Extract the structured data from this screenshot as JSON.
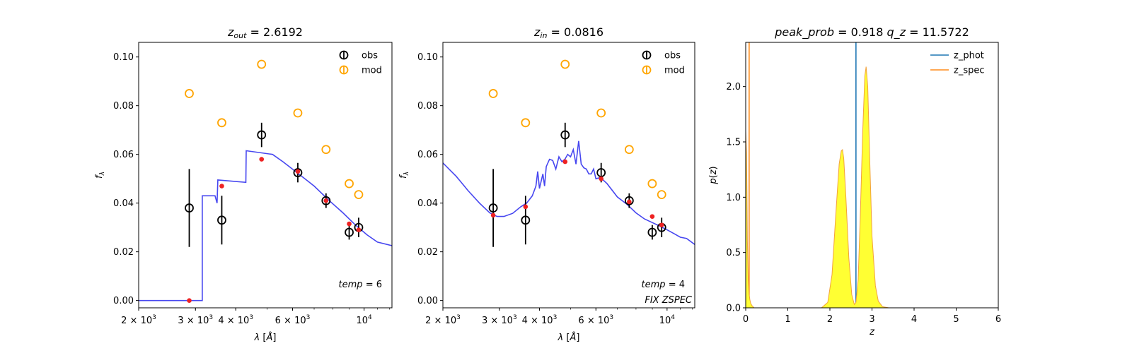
{
  "chart_data": [
    {
      "type": "scatter",
      "title": "z_out = 2.6192",
      "title_parts": {
        "var": "z",
        "sub": "out",
        "value": "= 2.6192"
      },
      "xlabel": "λ [Å]",
      "ylabel": "f_λ",
      "xscale": "log",
      "xlim": [
        2000,
        12200
      ],
      "ylim": [
        -0.003,
        0.106
      ],
      "x_ticks": [
        {
          "value": 2000,
          "base": "2 × 10",
          "exp": "3"
        },
        {
          "value": 3000,
          "base": "3 × 10",
          "exp": "3"
        },
        {
          "value": 4000,
          "base": "4 × 10",
          "exp": "3"
        },
        {
          "value": 6000,
          "base": "6 × 10",
          "exp": "3"
        },
        {
          "value": 10000,
          "base": "10",
          "exp": "4"
        }
      ],
      "y_ticks": [
        "0.00",
        "0.02",
        "0.04",
        "0.06",
        "0.08",
        "0.10"
      ],
      "legend": {
        "position": "top-right",
        "entries": [
          "obs",
          "mod"
        ]
      },
      "annotations": [
        {
          "text": "temp = 6",
          "position": "bottom-right"
        }
      ],
      "series": [
        {
          "name": "obs",
          "color": "#000000",
          "x": [
            2870,
            3620,
            4810,
            6230,
            7620,
            8990,
            9620
          ],
          "y": [
            0.038,
            0.033,
            0.068,
            0.0525,
            0.041,
            0.028,
            0.03
          ],
          "err": [
            0.016,
            0.01,
            0.005,
            0.004,
            0.003,
            0.003,
            0.004
          ]
        },
        {
          "name": "mod",
          "color": "#ffa500",
          "x": [
            2870,
            3620,
            4810,
            6230,
            7620,
            8990,
            9620
          ],
          "y": [
            0.085,
            0.073,
            0.097,
            0.077,
            0.062,
            0.048,
            0.0435
          ]
        },
        {
          "color": "#ee2222",
          "x": [
            2870,
            3620,
            4810,
            6230,
            7620,
            8990,
            9620
          ],
          "y": [
            0.0,
            0.047,
            0.058,
            0.053,
            0.041,
            0.0315,
            0.029
          ]
        },
        {
          "color": "#3333ee",
          "kind": "line",
          "x": [
            2000,
            3150,
            3150,
            3450,
            3500,
            3520,
            4300,
            4310,
            5200,
            5600,
            6200,
            7000,
            7800,
            8600,
            9400,
            10200,
            11000,
            12200
          ],
          "y": [
            0.0,
            0.0,
            0.043,
            0.043,
            0.04,
            0.0495,
            0.0485,
            0.0615,
            0.06,
            0.057,
            0.0525,
            0.047,
            0.041,
            0.036,
            0.031,
            0.027,
            0.024,
            0.0225
          ]
        }
      ]
    },
    {
      "type": "scatter",
      "title": "z_in = 0.0816",
      "title_parts": {
        "var": "z",
        "sub": "in",
        "value": "= 0.0816"
      },
      "xlabel": "λ [Å]",
      "ylabel": "f_λ",
      "xscale": "log",
      "xlim": [
        2000,
        12200
      ],
      "ylim": [
        -0.003,
        0.106
      ],
      "x_ticks": [
        {
          "value": 2000,
          "base": "2 × 10",
          "exp": "3"
        },
        {
          "value": 3000,
          "base": "3 × 10",
          "exp": "3"
        },
        {
          "value": 4000,
          "base": "4 × 10",
          "exp": "3"
        },
        {
          "value": 6000,
          "base": "6 × 10",
          "exp": "3"
        },
        {
          "value": 10000,
          "base": "10",
          "exp": "4"
        }
      ],
      "y_ticks": [
        "0.00",
        "0.02",
        "0.04",
        "0.06",
        "0.08",
        "0.10"
      ],
      "legend": {
        "position": "top-right",
        "entries": [
          "obs",
          "mod"
        ]
      },
      "annotations": [
        {
          "text": "temp = 4",
          "position": "bottom-right"
        },
        {
          "text": "FIX ZSPEC",
          "position": "bottom-right"
        }
      ],
      "series": [
        {
          "name": "obs",
          "color": "#000000",
          "x": [
            2870,
            3620,
            4810,
            6230,
            7620,
            8990,
            9620
          ],
          "y": [
            0.038,
            0.033,
            0.068,
            0.0525,
            0.041,
            0.028,
            0.03
          ],
          "err": [
            0.016,
            0.01,
            0.005,
            0.004,
            0.003,
            0.003,
            0.004
          ]
        },
        {
          "name": "mod",
          "color": "#ffa500",
          "x": [
            2870,
            3620,
            4810,
            6230,
            7620,
            8990,
            9620
          ],
          "y": [
            0.085,
            0.073,
            0.097,
            0.077,
            0.062,
            0.048,
            0.0435
          ]
        },
        {
          "color": "#ee2222",
          "x": [
            2870,
            3620,
            4810,
            6230,
            7620,
            8990,
            9620
          ],
          "y": [
            0.035,
            0.0385,
            0.057,
            0.05,
            0.0405,
            0.0345,
            0.031
          ]
        },
        {
          "color": "#3333ee",
          "kind": "line",
          "x": [
            2000,
            2200,
            2400,
            2600,
            2800,
            2950,
            3100,
            3300,
            3500,
            3650,
            3800,
            3900,
            3950,
            4000,
            4050,
            4100,
            4150,
            4200,
            4300,
            4400,
            4500,
            4600,
            4700,
            4800,
            4900,
            5000,
            5100,
            5200,
            5300,
            5400,
            5500,
            5600,
            5700,
            5800,
            5900,
            6000,
            6200,
            6500,
            7000,
            7500,
            8000,
            8500,
            9000,
            9500,
            10000,
            10500,
            11000,
            11500,
            12200
          ],
          "y": [
            0.0565,
            0.051,
            0.045,
            0.04,
            0.036,
            0.0345,
            0.0345,
            0.0358,
            0.0385,
            0.04,
            0.043,
            0.047,
            0.053,
            0.046,
            0.049,
            0.052,
            0.047,
            0.055,
            0.058,
            0.0575,
            0.054,
            0.059,
            0.057,
            0.058,
            0.06,
            0.059,
            0.062,
            0.056,
            0.0655,
            0.056,
            0.0545,
            0.054,
            0.052,
            0.052,
            0.054,
            0.05,
            0.0505,
            0.048,
            0.0425,
            0.0395,
            0.036,
            0.0335,
            0.032,
            0.0305,
            0.029,
            0.0275,
            0.026,
            0.0255,
            0.023
          ]
        }
      ]
    },
    {
      "type": "area",
      "title": "peak_prob = 0.918",
      "title2": "q_z = 11.5722",
      "title_parts": {
        "left": "peak_prob",
        "left_value": "= 0.918",
        "right": "q_z",
        "right_value": "= 11.5722"
      },
      "xlabel": "z",
      "ylabel": "p(z)",
      "xlim": [
        0,
        6
      ],
      "ylim": [
        0,
        2.4
      ],
      "x_ticks": [
        "0",
        "1",
        "2",
        "3",
        "4",
        "5",
        "6"
      ],
      "y_ticks": [
        "0.0",
        "0.5",
        "1.0",
        "1.5",
        "2.0"
      ],
      "legend": {
        "position": "top-right",
        "entries": [
          "z_phot",
          "z_spec"
        ]
      },
      "series": [
        {
          "name": "z_phot",
          "color": "#1f77b4",
          "kind": "vline",
          "x": 2.6192
        },
        {
          "name": "z_spec",
          "color": "#ff8c1a",
          "kind": "vline",
          "x": 0.0816
        },
        {
          "color": "#ffff33",
          "edge": "#f2a23c",
          "kind": "pdf",
          "x": [
            0,
            0.02,
            0.04,
            0.06,
            0.08,
            0.1,
            0.12,
            0.15,
            0.2,
            0.3,
            1.8,
            1.95,
            2.05,
            2.15,
            2.22,
            2.27,
            2.3,
            2.33,
            2.38,
            2.45,
            2.52,
            2.58,
            2.62,
            2.67,
            2.72,
            2.78,
            2.83,
            2.86,
            2.9,
            2.95,
            3.0,
            3.08,
            3.15,
            3.25,
            3.4,
            5.0
          ],
          "y": [
            1.6,
            1.4,
            0.6,
            0.25,
            0.12,
            0.07,
            0.04,
            0.02,
            0.0,
            0.0,
            0.0,
            0.05,
            0.3,
            0.9,
            1.3,
            1.42,
            1.43,
            1.35,
            1.0,
            0.45,
            0.12,
            0.03,
            0.05,
            0.25,
            0.8,
            1.6,
            2.1,
            2.18,
            2.0,
            1.3,
            0.65,
            0.2,
            0.06,
            0.01,
            0.0,
            0.0
          ]
        }
      ]
    }
  ]
}
